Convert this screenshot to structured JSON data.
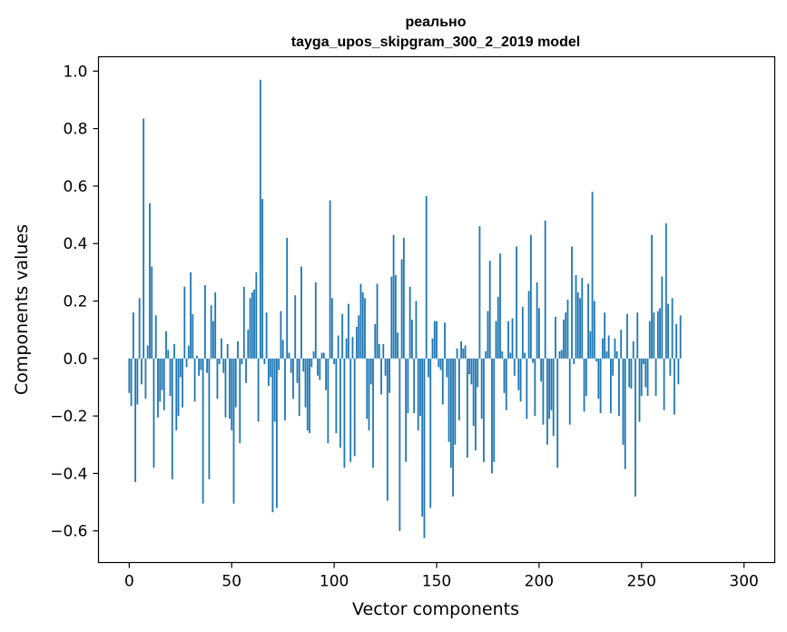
{
  "chart_data": {
    "type": "bar",
    "title_line1": "реально",
    "title_line2": "tayga_upos_skipgram_300_2_2019 model",
    "xlabel": "Vector components",
    "ylabel": "Components values",
    "xlim": [
      -15,
      315
    ],
    "ylim": [
      -0.71,
      1.05
    ],
    "xticks": [
      0,
      50,
      100,
      150,
      200,
      250,
      300
    ],
    "yticks": [
      -0.6,
      -0.4,
      -0.2,
      0.0,
      0.2,
      0.4,
      0.6,
      0.8,
      1.0
    ],
    "ytick_labels": [
      "−0.6",
      "−0.4",
      "−0.2",
      "0.0",
      "0.2",
      "0.4",
      "0.6",
      "0.8",
      "1.0"
    ],
    "grid": false,
    "bar_color": "#1f77b4",
    "values": [
      -0.12,
      -0.165,
      0.16,
      -0.43,
      -0.16,
      0.21,
      -0.09,
      0.835,
      -0.14,
      0.045,
      0.54,
      0.32,
      -0.38,
      0.15,
      -0.205,
      -0.15,
      -0.11,
      -0.18,
      0.095,
      0.03,
      -0.13,
      -0.42,
      0.05,
      -0.25,
      -0.2,
      -0.065,
      -0.17,
      0.25,
      -0.03,
      0.045,
      0.3,
      0.155,
      -0.15,
      0.01,
      -0.06,
      -0.04,
      -0.505,
      0.255,
      -0.05,
      -0.42,
      0.185,
      0.13,
      0.23,
      -0.14,
      -0.02,
      0.07,
      -0.05,
      -0.205,
      0.05,
      -0.21,
      -0.25,
      -0.505,
      -0.17,
      0.06,
      -0.295,
      -0.02,
      0.25,
      -0.085,
      0.1,
      0.21,
      0.23,
      0.24,
      0.3,
      -0.22,
      0.97,
      0.555,
      -0.02,
      0.16,
      -0.095,
      -0.065,
      -0.535,
      -0.22,
      -0.52,
      -0.04,
      0.165,
      0.065,
      -0.215,
      0.42,
      0.02,
      -0.05,
      -0.14,
      0.22,
      -0.085,
      -0.2,
      0.32,
      -0.045,
      -0.17,
      -0.25,
      -0.26,
      -0.03,
      0.025,
      0.265,
      -0.06,
      -0.075,
      0.02,
      0.02,
      -0.11,
      -0.295,
      0.55,
      0.21,
      -0.02,
      -0.26,
      0.08,
      -0.31,
      0.155,
      -0.38,
      0.07,
      0.19,
      -0.36,
      0.075,
      -0.34,
      0.11,
      0.15,
      0.26,
      0.23,
      0.21,
      -0.21,
      -0.25,
      -0.09,
      -0.38,
      0.12,
      0.26,
      0.05,
      -0.125,
      0.05,
      -0.06,
      -0.495,
      -0.12,
      0.285,
      0.43,
      0.29,
      0.09,
      -0.6,
      0.345,
      0.42,
      -0.36,
      -0.19,
      0.25,
      0.135,
      -0.19,
      0.2,
      -0.25,
      -0.2,
      -0.55,
      -0.625,
      0.565,
      -0.065,
      -0.52,
      0.07,
      0.13,
      0.13,
      -0.03,
      -0.04,
      -0.16,
      0.125,
      -0.065,
      -0.29,
      -0.38,
      -0.48,
      -0.3,
      0.035,
      -0.215,
      0.06,
      0.035,
      0.045,
      -0.345,
      -0.055,
      -0.09,
      -0.235,
      -0.32,
      -0.1,
      0.46,
      -0.21,
      -0.36,
      0.025,
      0.165,
      0.34,
      -0.4,
      -0.36,
      0.13,
      0.215,
      0.365,
      0.025,
      -0.12,
      -0.18,
      0.13,
      0.02,
      0.14,
      -0.06,
      0.39,
      -0.11,
      -0.15,
      0.18,
      0.02,
      -0.21,
      0.235,
      0.43,
      -0.015,
      -0.2,
      0.265,
      0.175,
      -0.08,
      -0.23,
      0.48,
      -0.3,
      -0.21,
      -0.18,
      -0.27,
      0.145,
      -0.38,
      0.025,
      0.03,
      0.135,
      0.16,
      0.205,
      -0.23,
      0.39,
      -0.02,
      0.29,
      0.23,
      0.21,
      0.28,
      -0.185,
      -0.13,
      0.26,
      0.095,
      0.58,
      0.2,
      -0.01,
      -0.14,
      -0.19,
      0.07,
      0.16,
      0.025,
      0.08,
      -0.19,
      -0.06,
      0.07,
      0.025,
      -0.2,
      0.1,
      -0.3,
      -0.385,
      0.155,
      -0.1,
      -0.105,
      0.06,
      -0.48,
      0.16,
      -0.22,
      -0.13,
      -0.02,
      -0.1,
      -0.13,
      0.13,
      0.43,
      0.16,
      -0.13,
      0.165,
      0.175,
      0.285,
      -0.18,
      0.47,
      0.19,
      -0.06,
      0.21,
      -0.195,
      0.12,
      -0.09,
      0.15
    ]
  }
}
